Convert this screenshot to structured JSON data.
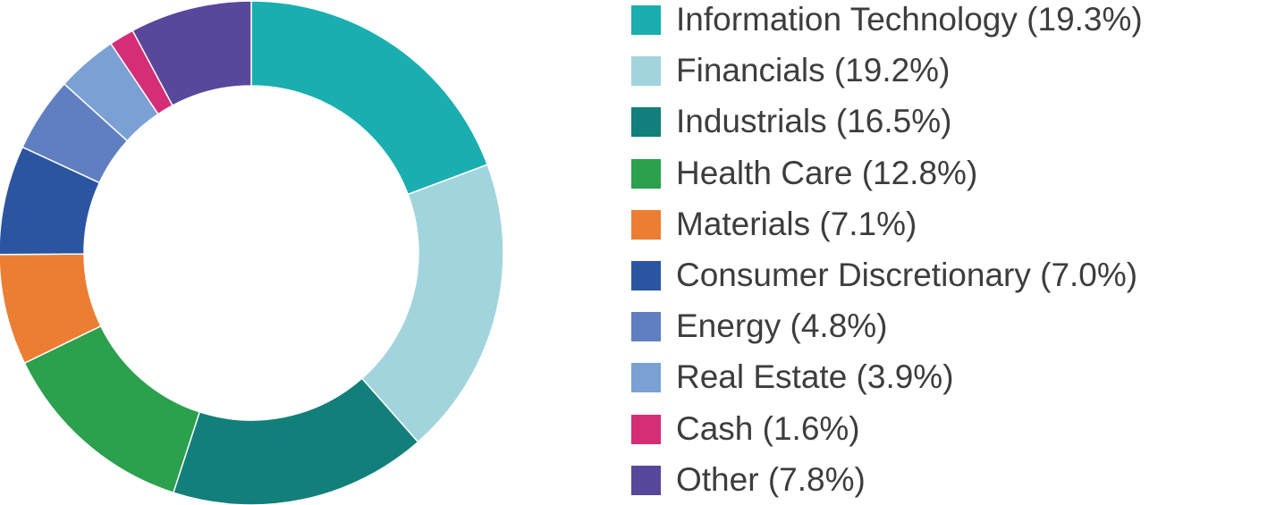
{
  "chart_data": {
    "type": "pie",
    "style": "donut",
    "legend_placement": "right",
    "slices": [
      {
        "label": "Information Technology (19.3%)",
        "value": 19.3,
        "color": "#1AAEB0"
      },
      {
        "label": "Financials (19.2%)",
        "value": 19.2,
        "color": "#A2D4DE"
      },
      {
        "label": "Industrials (16.5%)",
        "value": 16.5,
        "color": "#127F7A"
      },
      {
        "label": "Health Care (12.8%)",
        "value": 12.8,
        "color": "#2BA04D"
      },
      {
        "label": "Materials (7.1%)",
        "value": 7.1,
        "color": "#EB7E33"
      },
      {
        "label": "Consumer Discretionary (7.0%)",
        "value": 7.0,
        "color": "#2C55A1"
      },
      {
        "label": "Energy (4.8%)",
        "value": 4.8,
        "color": "#5F7FC0"
      },
      {
        "label": "Real Estate (3.9%)",
        "value": 3.9,
        "color": "#7AA0D4"
      },
      {
        "label": "Cash (1.6%)",
        "value": 1.6,
        "color": "#D52E76"
      },
      {
        "label": "Other (7.8%)",
        "value": 7.8,
        "color": "#58479A"
      }
    ]
  }
}
